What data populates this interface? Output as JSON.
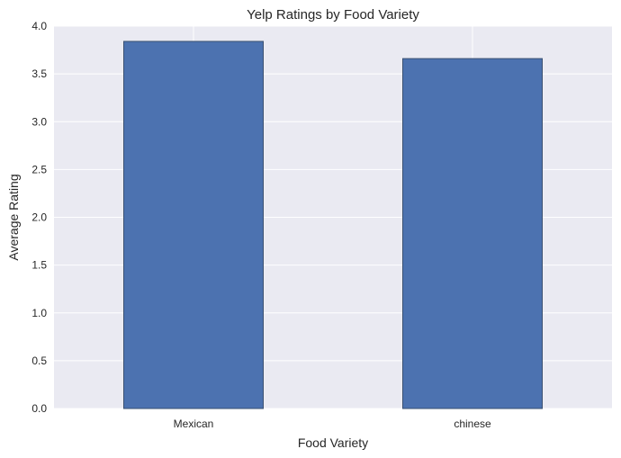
{
  "chart_data": {
    "type": "bar",
    "title": "Yelp Ratings by Food Variety",
    "xlabel": "Food Variety",
    "ylabel": "Average Rating",
    "categories": [
      "Mexican",
      "chinese"
    ],
    "values": [
      3.84,
      3.66
    ],
    "ylim": [
      0,
      4.0
    ],
    "yticks": [
      "0.0",
      "0.5",
      "1.0",
      "1.5",
      "2.0",
      "2.5",
      "3.0",
      "3.5",
      "4.0"
    ],
    "grid": true,
    "legend": "none",
    "colors": {
      "bar": "#4c72b0",
      "bar_edge": "#3a5070",
      "plot_background": "#eaeaf2",
      "grid": "#ffffff"
    }
  }
}
